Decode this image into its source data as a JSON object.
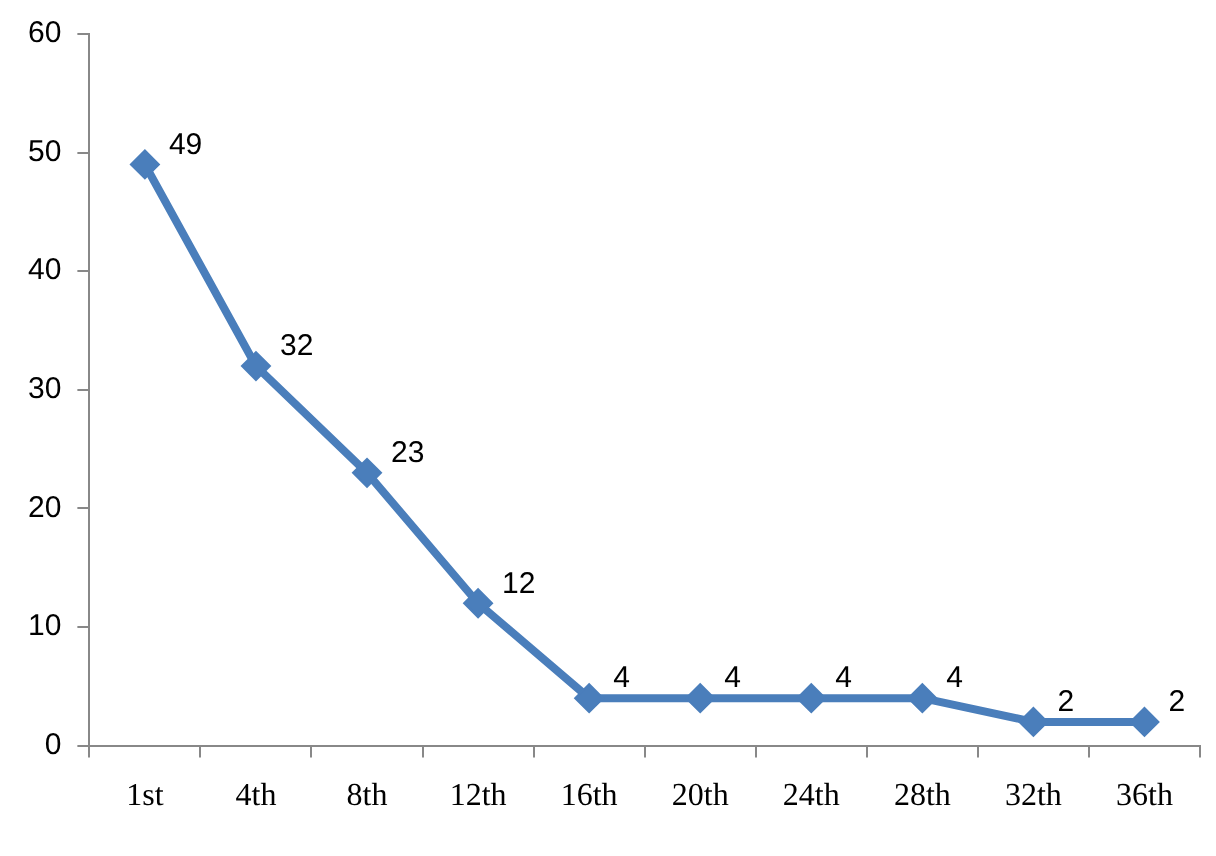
{
  "chart_data": {
    "type": "line",
    "categories": [
      "1st",
      "4th",
      "8th",
      "12th",
      "16th",
      "20th",
      "24th",
      "28th",
      "32th",
      "36th"
    ],
    "series": [
      {
        "color": "#4a7ebb",
        "values": [
          49,
          32,
          23,
          12,
          4,
          4,
          4,
          4,
          2,
          2
        ]
      }
    ],
    "ylim": [
      0,
      60
    ],
    "yticks": [
      0,
      10,
      20,
      30,
      40,
      50,
      60
    ],
    "grid": false,
    "legend": false,
    "marker": "diamond",
    "line_style": "solid",
    "data_labels": true
  }
}
